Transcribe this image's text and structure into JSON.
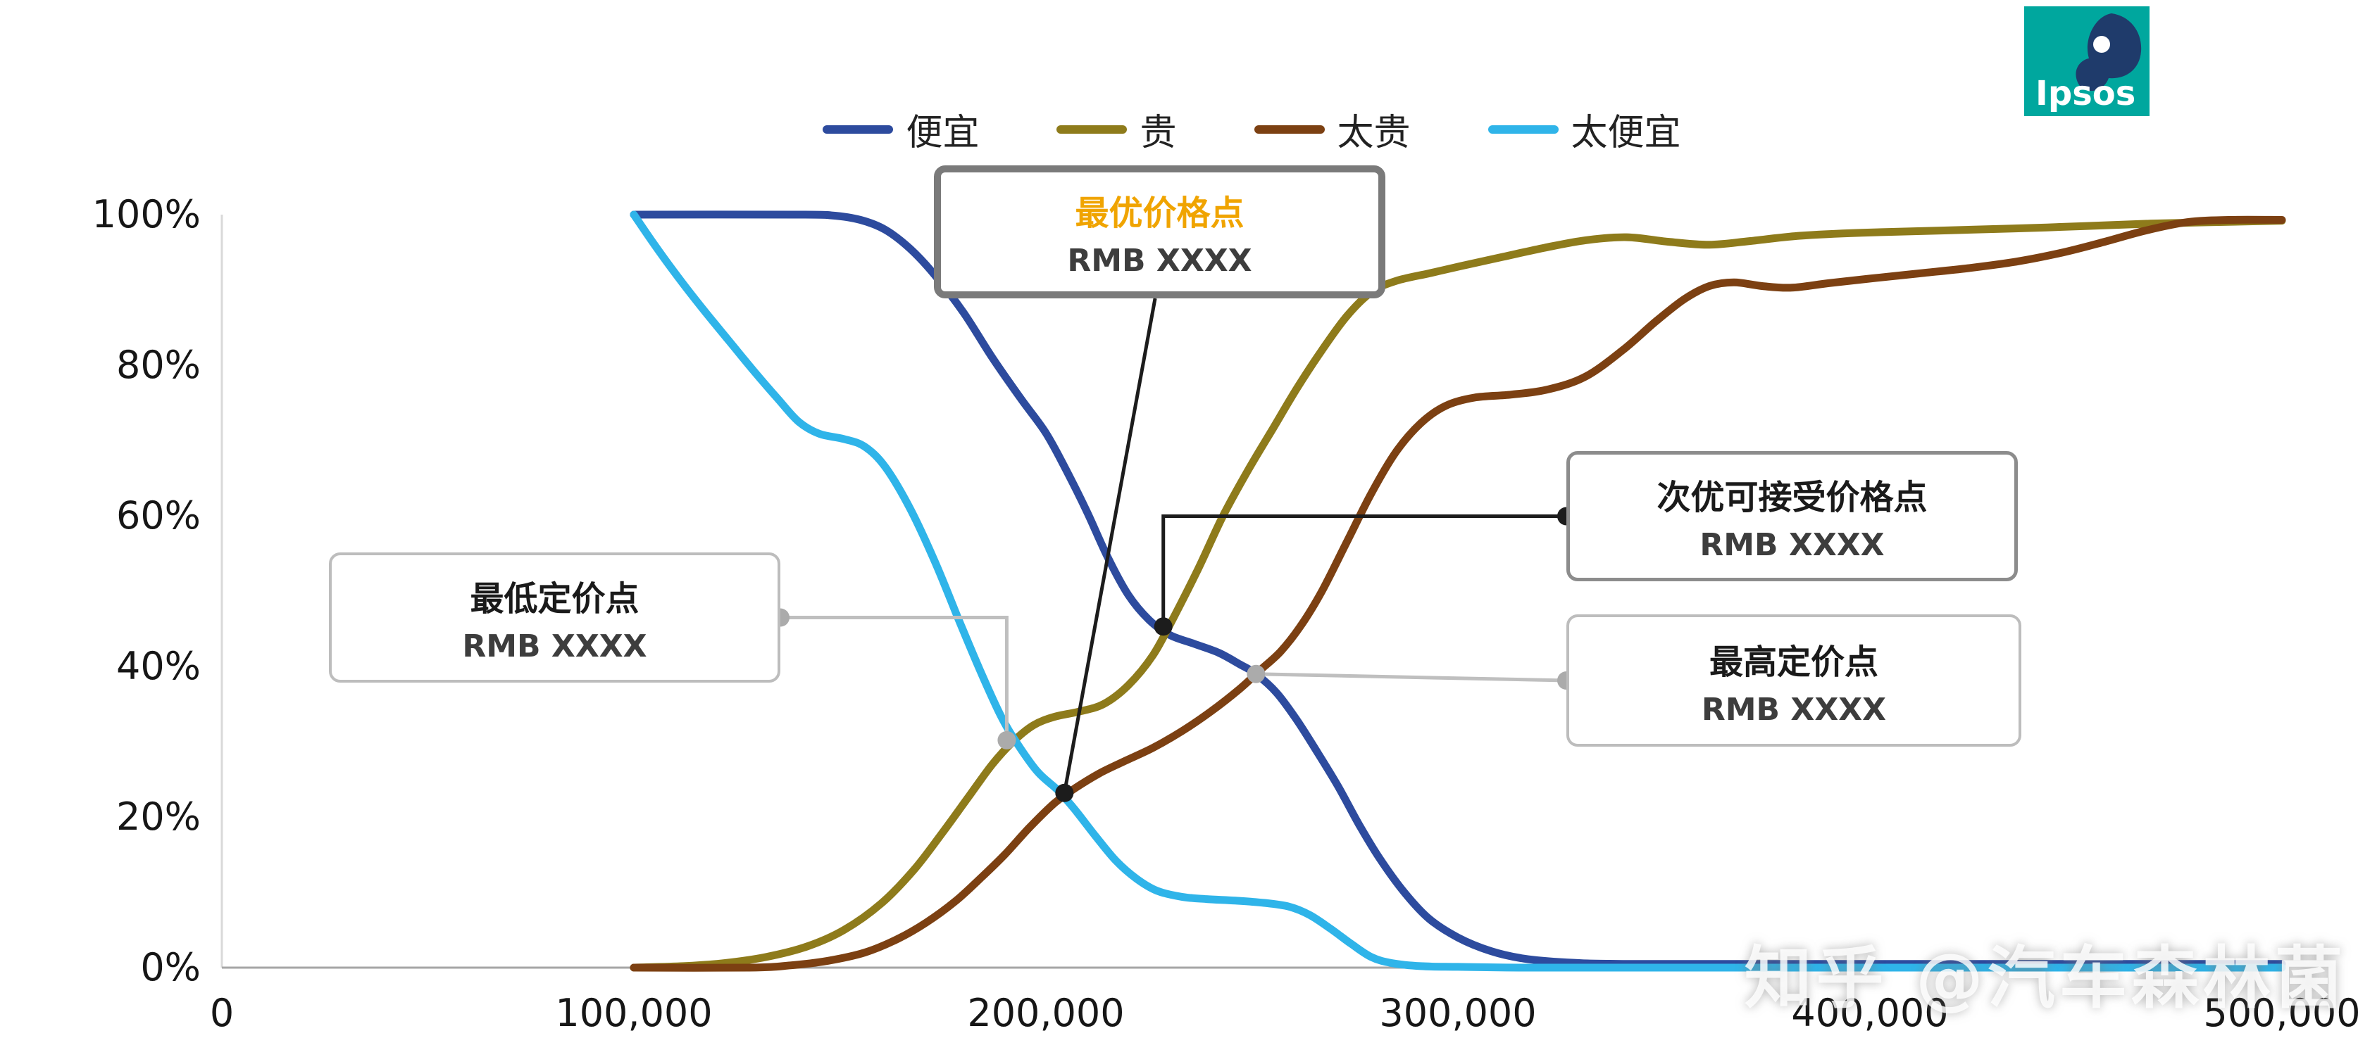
{
  "page": {
    "watermark": "知乎 @汽车森林菌",
    "logo_text": "Ipsos",
    "logo_bg": "#00A79E",
    "logo_navy": "#1F3B6B"
  },
  "chart_data": {
    "type": "line",
    "title": "",
    "xlabel": "",
    "ylabel": "",
    "xlim": [
      0,
      500000
    ],
    "ylim": [
      0,
      100
    ],
    "grid": false,
    "legend_position": "top",
    "x_ticks": [
      0,
      100000,
      200000,
      300000,
      400000,
      500000
    ],
    "x_tick_labels": [
      "0",
      "100,000",
      "200,000",
      "300,000",
      "400,000",
      "500,000"
    ],
    "y_tick_labels": [
      "100%",
      "80%",
      "60%",
      "40%",
      "20%",
      "0%"
    ],
    "series": [
      {
        "name": "便宜",
        "color": "#2D4B9E",
        "points": [
          [
            100000,
            100
          ],
          [
            140000,
            100
          ],
          [
            148000,
            99.9
          ],
          [
            155000,
            99.3
          ],
          [
            161000,
            98
          ],
          [
            167000,
            95.5
          ],
          [
            173000,
            92
          ],
          [
            180000,
            87
          ],
          [
            187000,
            81
          ],
          [
            194000,
            75.5
          ],
          [
            200000,
            71
          ],
          [
            205000,
            66
          ],
          [
            210000,
            60.5
          ],
          [
            215000,
            54.5
          ],
          [
            220000,
            49.5
          ],
          [
            225000,
            46.2
          ],
          [
            230000,
            44.2
          ],
          [
            236000,
            43
          ],
          [
            242000,
            41.8
          ],
          [
            247000,
            40.3
          ],
          [
            251000,
            39
          ],
          [
            256000,
            36.5
          ],
          [
            261000,
            32.8
          ],
          [
            266000,
            28.5
          ],
          [
            271000,
            24
          ],
          [
            276000,
            19
          ],
          [
            281000,
            14.5
          ],
          [
            287000,
            10
          ],
          [
            293000,
            6.5
          ],
          [
            300000,
            4
          ],
          [
            308000,
            2.2
          ],
          [
            316000,
            1.2
          ],
          [
            326000,
            0.7
          ],
          [
            340000,
            0.5
          ],
          [
            380000,
            0.5
          ],
          [
            440000,
            0.5
          ],
          [
            500000,
            0.5
          ]
        ]
      },
      {
        "name": "贵",
        "color": "#8E7B1B",
        "points": [
          [
            100000,
            0
          ],
          [
            112000,
            0.2
          ],
          [
            122000,
            0.6
          ],
          [
            132000,
            1.4
          ],
          [
            142000,
            2.8
          ],
          [
            151000,
            5
          ],
          [
            160000,
            8.5
          ],
          [
            168000,
            13
          ],
          [
            175000,
            18
          ],
          [
            181000,
            22.5
          ],
          [
            187000,
            27
          ],
          [
            192000,
            30
          ],
          [
            197000,
            32.2
          ],
          [
            202000,
            33.3
          ],
          [
            208000,
            34
          ],
          [
            214000,
            35
          ],
          [
            220000,
            37.5
          ],
          [
            226000,
            41.5
          ],
          [
            231000,
            46.5
          ],
          [
            237000,
            53
          ],
          [
            243000,
            60
          ],
          [
            249000,
            66
          ],
          [
            255000,
            71.5
          ],
          [
            261000,
            77
          ],
          [
            267000,
            82
          ],
          [
            273000,
            86.5
          ],
          [
            279000,
            89.7
          ],
          [
            285000,
            91.2
          ],
          [
            293000,
            92.2
          ],
          [
            301000,
            93.2
          ],
          [
            311000,
            94.4
          ],
          [
            321000,
            95.6
          ],
          [
            331000,
            96.6
          ],
          [
            341000,
            97
          ],
          [
            351000,
            96.4
          ],
          [
            361000,
            96
          ],
          [
            371000,
            96.5
          ],
          [
            383000,
            97.2
          ],
          [
            398000,
            97.6
          ],
          [
            418000,
            97.9
          ],
          [
            443000,
            98.3
          ],
          [
            468000,
            98.8
          ],
          [
            500000,
            99.2
          ]
        ]
      },
      {
        "name": "太贵",
        "color": "#7C4012",
        "points": [
          [
            100000,
            0
          ],
          [
            128000,
            0
          ],
          [
            138000,
            0.3
          ],
          [
            147000,
            0.9
          ],
          [
            156000,
            2
          ],
          [
            164000,
            3.8
          ],
          [
            171000,
            6
          ],
          [
            178000,
            8.8
          ],
          [
            184000,
            11.8
          ],
          [
            190000,
            15
          ],
          [
            196000,
            18.6
          ],
          [
            202000,
            21.8
          ],
          [
            207000,
            23.8
          ],
          [
            213000,
            25.8
          ],
          [
            219000,
            27.4
          ],
          [
            226000,
            29.2
          ],
          [
            233000,
            31.4
          ],
          [
            240000,
            34
          ],
          [
            247000,
            37
          ],
          [
            252000,
            39.5
          ],
          [
            257000,
            42
          ],
          [
            262000,
            45.5
          ],
          [
            267000,
            50
          ],
          [
            273000,
            56.5
          ],
          [
            279000,
            63
          ],
          [
            285000,
            68.5
          ],
          [
            291000,
            72.3
          ],
          [
            297000,
            74.6
          ],
          [
            304000,
            75.7
          ],
          [
            313000,
            76.1
          ],
          [
            322000,
            76.8
          ],
          [
            331000,
            78.5
          ],
          [
            340000,
            82
          ],
          [
            348000,
            85.8
          ],
          [
            355000,
            88.8
          ],
          [
            361000,
            90.5
          ],
          [
            367000,
            91
          ],
          [
            374000,
            90.5
          ],
          [
            381000,
            90.3
          ],
          [
            390000,
            90.9
          ],
          [
            400000,
            91.5
          ],
          [
            412000,
            92.2
          ],
          [
            424000,
            92.9
          ],
          [
            436000,
            93.8
          ],
          [
            447000,
            95
          ],
          [
            457000,
            96.4
          ],
          [
            467000,
            97.9
          ],
          [
            477000,
            99
          ],
          [
            487000,
            99.3
          ],
          [
            500000,
            99.3
          ]
        ]
      },
      {
        "name": "太便宜",
        "color": "#2FB4E9",
        "points": [
          [
            100000,
            100
          ],
          [
            105000,
            96
          ],
          [
            111000,
            91.5
          ],
          [
            117000,
            87.3
          ],
          [
            123000,
            83.3
          ],
          [
            129000,
            79.3
          ],
          [
            135000,
            75.5
          ],
          [
            140000,
            72.5
          ],
          [
            145000,
            70.9
          ],
          [
            151000,
            70.2
          ],
          [
            156000,
            69.2
          ],
          [
            161000,
            66.5
          ],
          [
            167000,
            61
          ],
          [
            173000,
            54
          ],
          [
            179000,
            46
          ],
          [
            184000,
            39.5
          ],
          [
            189000,
            33.5
          ],
          [
            193000,
            29.8
          ],
          [
            198000,
            26
          ],
          [
            203000,
            23.5
          ],
          [
            207000,
            21
          ],
          [
            212000,
            17.5
          ],
          [
            217000,
            14.2
          ],
          [
            222000,
            11.8
          ],
          [
            227000,
            10.2
          ],
          [
            233000,
            9.4
          ],
          [
            239000,
            9.1
          ],
          [
            246000,
            8.9
          ],
          [
            253000,
            8.6
          ],
          [
            259000,
            8.1
          ],
          [
            264000,
            7
          ],
          [
            269000,
            5.2
          ],
          [
            274000,
            3.2
          ],
          [
            279000,
            1.4
          ],
          [
            284000,
            0.6
          ],
          [
            291000,
            0.2
          ],
          [
            300000,
            0.1
          ],
          [
            315000,
            0
          ],
          [
            350000,
            0
          ],
          [
            420000,
            0
          ],
          [
            500000,
            0
          ]
        ]
      }
    ],
    "annotations": [
      {
        "id": "optimal",
        "title": "最优价格点",
        "value": "RMB XXXX",
        "x": 204500,
        "pct": 23.2,
        "title_color": "#F0A400"
      },
      {
        "id": "indifference",
        "title": "次优可接受价格点",
        "value": "RMB XXXX",
        "x": 228500,
        "pct": 45.3
      },
      {
        "id": "lowest",
        "title": "最低定价点",
        "value": "RMB XXXX",
        "x": 190500,
        "pct": 30.2
      },
      {
        "id": "highest",
        "title": "最高定价点",
        "value": "RMB XXXX",
        "x": 251000,
        "pct": 39
      }
    ]
  }
}
